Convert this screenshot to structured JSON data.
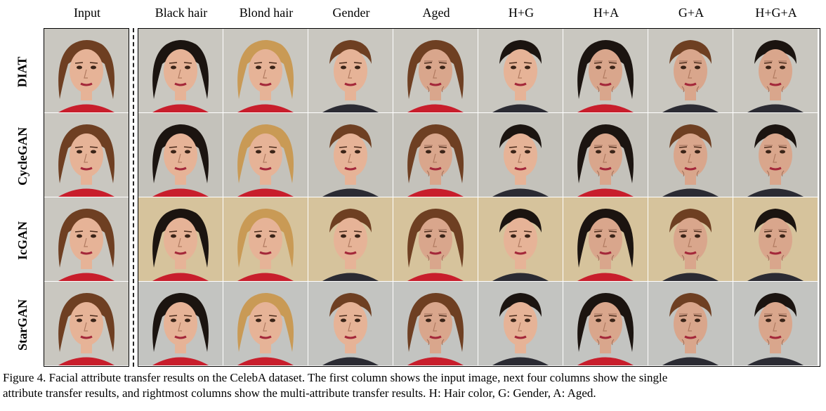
{
  "columns": {
    "input": "Input",
    "black_hair": "Black hair",
    "blond_hair": "Blond hair",
    "gender": "Gender",
    "aged": "Aged",
    "hg": "H+G",
    "ha": "H+A",
    "ga": "G+A",
    "hga": "H+G+A"
  },
  "rows": {
    "diat": "DIAT",
    "cyclegan": "CycleGAN",
    "icgan": "IcGAN",
    "stargan": "StarGAN"
  },
  "caption": {
    "line1": "Figure 4. Facial attribute transfer results on the CelebA dataset. The first column shows the input image, next four columns show the single",
    "line2": "attribute transfer results, and rightmost columns show the multi-attribute transfer results. H: Hair color, G: Gender, A: Aged."
  },
  "colors": {
    "bg_diat": "#c9c7c0",
    "bg_cyclegan": "#c4c2bb",
    "bg_icgan": "#d6c39c",
    "bg_stargan": "#c3c4c1",
    "skin": "#e6b397",
    "hair_brown": "#6e3f22",
    "hair_black": "#1b1410",
    "hair_blond": "#c99a55",
    "shirt": "#c81e2c"
  }
}
